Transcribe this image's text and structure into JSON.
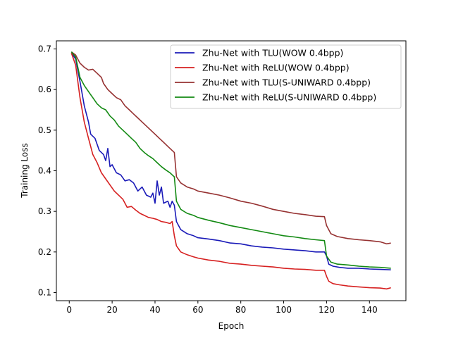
{
  "chart_data": {
    "type": "line",
    "title": "",
    "xlabel": "Epoch",
    "ylabel": "Training Loss",
    "xlim": [
      -6,
      157
    ],
    "ylim": [
      0.08,
      0.72
    ],
    "xticks": [
      0,
      20,
      40,
      60,
      80,
      100,
      120,
      140
    ],
    "yticks": [
      0.1,
      0.2,
      0.3,
      0.4,
      0.5,
      0.6,
      0.7
    ],
    "xtick_labels": [
      "0",
      "20",
      "40",
      "60",
      "80",
      "100",
      "120",
      "140"
    ],
    "ytick_labels": [
      "0.1",
      "0.2",
      "0.3",
      "0.4",
      "0.5",
      "0.6",
      "0.7"
    ],
    "grid": false,
    "legend_position": "top-right",
    "series": [
      {
        "name": "Zhu-Net with TLU(WOW 0.4bpp)",
        "color": "#1a1ab8",
        "points": [
          [
            1,
            0.69
          ],
          [
            3,
            0.675
          ],
          [
            5,
            0.62
          ],
          [
            7,
            0.56
          ],
          [
            9,
            0.52
          ],
          [
            10,
            0.49
          ],
          [
            12,
            0.48
          ],
          [
            14,
            0.45
          ],
          [
            16,
            0.44
          ],
          [
            17,
            0.425
          ],
          [
            18,
            0.455
          ],
          [
            19,
            0.41
          ],
          [
            20,
            0.415
          ],
          [
            22,
            0.395
          ],
          [
            24,
            0.39
          ],
          [
            26,
            0.375
          ],
          [
            28,
            0.378
          ],
          [
            30,
            0.37
          ],
          [
            32,
            0.35
          ],
          [
            34,
            0.36
          ],
          [
            36,
            0.34
          ],
          [
            38,
            0.335
          ],
          [
            39,
            0.345
          ],
          [
            40,
            0.32
          ],
          [
            41,
            0.375
          ],
          [
            42,
            0.34
          ],
          [
            43,
            0.36
          ],
          [
            44,
            0.32
          ],
          [
            46,
            0.325
          ],
          [
            47,
            0.31
          ],
          [
            48,
            0.325
          ],
          [
            49,
            0.315
          ],
          [
            50,
            0.275
          ],
          [
            52,
            0.255
          ],
          [
            55,
            0.245
          ],
          [
            58,
            0.24
          ],
          [
            60,
            0.235
          ],
          [
            65,
            0.232
          ],
          [
            70,
            0.228
          ],
          [
            75,
            0.222
          ],
          [
            80,
            0.22
          ],
          [
            85,
            0.215
          ],
          [
            90,
            0.212
          ],
          [
            95,
            0.21
          ],
          [
            100,
            0.207
          ],
          [
            105,
            0.205
          ],
          [
            110,
            0.203
          ],
          [
            115,
            0.2
          ],
          [
            119,
            0.2
          ],
          [
            120,
            0.19
          ],
          [
            121,
            0.17
          ],
          [
            123,
            0.165
          ],
          [
            126,
            0.162
          ],
          [
            130,
            0.16
          ],
          [
            135,
            0.16
          ],
          [
            140,
            0.158
          ],
          [
            145,
            0.157
          ],
          [
            150,
            0.156
          ]
        ]
      },
      {
        "name": "Zhu-Net with ReLU(WOW 0.4bpp)",
        "color": "#d62020",
        "points": [
          [
            1,
            0.69
          ],
          [
            3,
            0.66
          ],
          [
            5,
            0.58
          ],
          [
            7,
            0.52
          ],
          [
            9,
            0.48
          ],
          [
            11,
            0.44
          ],
          [
            13,
            0.42
          ],
          [
            15,
            0.395
          ],
          [
            17,
            0.38
          ],
          [
            19,
            0.365
          ],
          [
            21,
            0.35
          ],
          [
            23,
            0.34
          ],
          [
            25,
            0.33
          ],
          [
            27,
            0.31
          ],
          [
            29,
            0.312
          ],
          [
            31,
            0.303
          ],
          [
            33,
            0.295
          ],
          [
            35,
            0.29
          ],
          [
            37,
            0.285
          ],
          [
            39,
            0.283
          ],
          [
            41,
            0.28
          ],
          [
            43,
            0.275
          ],
          [
            45,
            0.273
          ],
          [
            47,
            0.27
          ],
          [
            48,
            0.275
          ],
          [
            49,
            0.24
          ],
          [
            50,
            0.215
          ],
          [
            52,
            0.2
          ],
          [
            55,
            0.193
          ],
          [
            58,
            0.188
          ],
          [
            60,
            0.185
          ],
          [
            65,
            0.18
          ],
          [
            70,
            0.177
          ],
          [
            75,
            0.172
          ],
          [
            80,
            0.17
          ],
          [
            85,
            0.167
          ],
          [
            90,
            0.165
          ],
          [
            95,
            0.163
          ],
          [
            100,
            0.16
          ],
          [
            105,
            0.158
          ],
          [
            110,
            0.157
          ],
          [
            115,
            0.155
          ],
          [
            119,
            0.155
          ],
          [
            120,
            0.14
          ],
          [
            121,
            0.128
          ],
          [
            123,
            0.122
          ],
          [
            126,
            0.119
          ],
          [
            130,
            0.116
          ],
          [
            135,
            0.114
          ],
          [
            140,
            0.112
          ],
          [
            145,
            0.111
          ],
          [
            148,
            0.109
          ],
          [
            150,
            0.112
          ]
        ]
      },
      {
        "name": "Zhu-Net with TLU(S-UNIWARD 0.4bpp)",
        "color": "#963232",
        "points": [
          [
            1,
            0.693
          ],
          [
            3,
            0.685
          ],
          [
            5,
            0.665
          ],
          [
            7,
            0.655
          ],
          [
            9,
            0.648
          ],
          [
            11,
            0.65
          ],
          [
            13,
            0.64
          ],
          [
            15,
            0.63
          ],
          [
            16,
            0.615
          ],
          [
            18,
            0.6
          ],
          [
            20,
            0.59
          ],
          [
            22,
            0.58
          ],
          [
            24,
            0.575
          ],
          [
            26,
            0.56
          ],
          [
            28,
            0.55
          ],
          [
            30,
            0.54
          ],
          [
            32,
            0.53
          ],
          [
            34,
            0.52
          ],
          [
            36,
            0.51
          ],
          [
            38,
            0.5
          ],
          [
            40,
            0.49
          ],
          [
            42,
            0.48
          ],
          [
            44,
            0.47
          ],
          [
            46,
            0.46
          ],
          [
            48,
            0.45
          ],
          [
            49,
            0.445
          ],
          [
            50,
            0.385
          ],
          [
            52,
            0.37
          ],
          [
            55,
            0.36
          ],
          [
            58,
            0.355
          ],
          [
            60,
            0.35
          ],
          [
            65,
            0.345
          ],
          [
            70,
            0.34
          ],
          [
            75,
            0.333
          ],
          [
            80,
            0.325
          ],
          [
            85,
            0.32
          ],
          [
            90,
            0.313
          ],
          [
            95,
            0.305
          ],
          [
            100,
            0.3
          ],
          [
            105,
            0.295
          ],
          [
            110,
            0.292
          ],
          [
            115,
            0.288
          ],
          [
            119,
            0.287
          ],
          [
            120,
            0.265
          ],
          [
            122,
            0.245
          ],
          [
            125,
            0.238
          ],
          [
            130,
            0.233
          ],
          [
            135,
            0.23
          ],
          [
            140,
            0.228
          ],
          [
            145,
            0.225
          ],
          [
            148,
            0.22
          ],
          [
            150,
            0.222
          ]
        ]
      },
      {
        "name": "Zhu-Net with ReLU(S-UNIWARD 0.4bpp)",
        "color": "#138a13",
        "points": [
          [
            1,
            0.693
          ],
          [
            3,
            0.68
          ],
          [
            5,
            0.63
          ],
          [
            7,
            0.61
          ],
          [
            9,
            0.595
          ],
          [
            11,
            0.58
          ],
          [
            13,
            0.565
          ],
          [
            15,
            0.555
          ],
          [
            17,
            0.55
          ],
          [
            19,
            0.535
          ],
          [
            21,
            0.525
          ],
          [
            23,
            0.51
          ],
          [
            25,
            0.5
          ],
          [
            27,
            0.49
          ],
          [
            29,
            0.48
          ],
          [
            31,
            0.47
          ],
          [
            33,
            0.455
          ],
          [
            35,
            0.445
          ],
          [
            37,
            0.437
          ],
          [
            39,
            0.43
          ],
          [
            41,
            0.42
          ],
          [
            43,
            0.41
          ],
          [
            45,
            0.402
          ],
          [
            47,
            0.395
          ],
          [
            48,
            0.39
          ],
          [
            49,
            0.385
          ],
          [
            50,
            0.325
          ],
          [
            52,
            0.305
          ],
          [
            55,
            0.295
          ],
          [
            58,
            0.29
          ],
          [
            60,
            0.285
          ],
          [
            65,
            0.278
          ],
          [
            70,
            0.272
          ],
          [
            75,
            0.265
          ],
          [
            80,
            0.26
          ],
          [
            85,
            0.255
          ],
          [
            90,
            0.25
          ],
          [
            95,
            0.245
          ],
          [
            100,
            0.24
          ],
          [
            105,
            0.237
          ],
          [
            110,
            0.233
          ],
          [
            115,
            0.23
          ],
          [
            119,
            0.228
          ],
          [
            120,
            0.19
          ],
          [
            122,
            0.175
          ],
          [
            125,
            0.17
          ],
          [
            130,
            0.168
          ],
          [
            135,
            0.165
          ],
          [
            140,
            0.163
          ],
          [
            145,
            0.162
          ],
          [
            150,
            0.16
          ]
        ]
      }
    ]
  }
}
